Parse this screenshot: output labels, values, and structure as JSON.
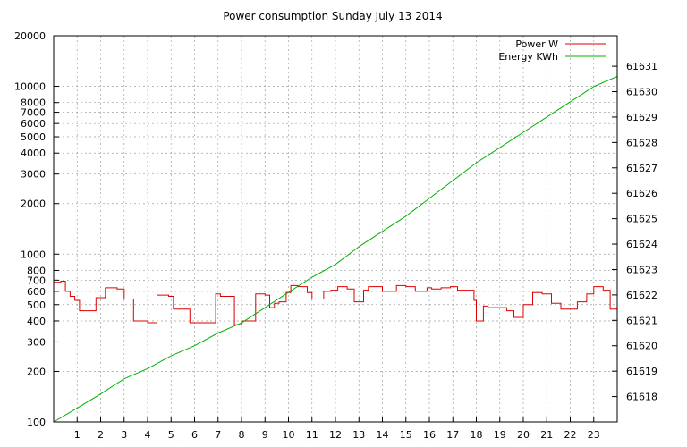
{
  "chart_data": {
    "type": "line",
    "title": "Power consumption Sunday July 13 2014",
    "xlabel": "",
    "ylabel": "",
    "y2label": "",
    "xlim": [
      0,
      24
    ],
    "x_ticks": [
      "1",
      "2",
      "3",
      "4",
      "5",
      "6",
      "7",
      "8",
      "9",
      "10",
      "11",
      "12",
      "13",
      "14",
      "15",
      "16",
      "17",
      "18",
      "19",
      "20",
      "21",
      "22",
      "23"
    ],
    "y_scale": "log",
    "ylim": [
      100,
      20000
    ],
    "y_ticks": [
      "100",
      "200",
      "300",
      "400",
      "500",
      "600",
      "700",
      "800",
      "1000",
      "2000",
      "3000",
      "4000",
      "5000",
      "6000",
      "7000",
      "8000",
      "10000",
      "20000"
    ],
    "y2lim": [
      61617.0,
      61632.2
    ],
    "y2_ticks": [
      "61618",
      "61619",
      "61620",
      "61621",
      "61622",
      "61623",
      "61624",
      "61625",
      "61626",
      "61627",
      "61628",
      "61629",
      "61630",
      "61631"
    ],
    "grid": true,
    "legend_position": "top-right",
    "colors": {
      "power": "#dd0000",
      "energy": "#00b000",
      "grid": "#a0a0a0"
    },
    "series": [
      {
        "name": "Power W",
        "axis": "left",
        "x": [
          0,
          0.3,
          0.5,
          0.7,
          0.9,
          1.1,
          1.6,
          1.8,
          2.2,
          2.7,
          3,
          3.4,
          4,
          4.4,
          4.9,
          5.1,
          5.8,
          6.3,
          6.9,
          7.1,
          7.7,
          8,
          8.6,
          9,
          9.2,
          9.4,
          9.6,
          9.9,
          10.1,
          10.4,
          10.8,
          11,
          11.5,
          11.8,
          12.1,
          12.5,
          12.8,
          13.2,
          13.4,
          14,
          14.6,
          15,
          15.4,
          15.9,
          16.1,
          16.5,
          16.9,
          17.2,
          17.9,
          18,
          18.3,
          18.5,
          19,
          19.3,
          19.6,
          20,
          20.4,
          20.8,
          21.2,
          21.6,
          21.9,
          22.3,
          22.7,
          23,
          23.4,
          23.7,
          24
        ],
        "y": [
          680,
          690,
          600,
          560,
          530,
          460,
          460,
          550,
          630,
          620,
          540,
          400,
          390,
          570,
          560,
          470,
          390,
          390,
          580,
          560,
          380,
          400,
          580,
          570,
          480,
          510,
          520,
          590,
          650,
          640,
          590,
          540,
          600,
          610,
          640,
          620,
          520,
          610,
          640,
          600,
          650,
          640,
          600,
          630,
          620,
          630,
          640,
          610,
          530,
          400,
          490,
          480,
          480,
          460,
          420,
          500,
          590,
          580,
          510,
          470,
          470,
          520,
          580,
          640,
          610,
          470,
          470
        ]
      },
      {
        "name": "Energy KWh",
        "axis": "right",
        "x": [
          0,
          1,
          2,
          3,
          4,
          5,
          6,
          7,
          8,
          9,
          10,
          11,
          12,
          13,
          14,
          15,
          16,
          17,
          18,
          19,
          20,
          21,
          22,
          23,
          24
        ],
        "y": [
          61617.0,
          61617.55,
          61618.1,
          61618.7,
          61619.1,
          61619.6,
          61620.0,
          61620.5,
          61620.9,
          61621.5,
          61622.1,
          61622.7,
          61623.2,
          61623.9,
          61624.5,
          61625.1,
          61625.8,
          61626.5,
          61627.2,
          61627.8,
          61628.4,
          61629.0,
          61629.6,
          61630.2,
          61630.6
        ]
      }
    ]
  }
}
